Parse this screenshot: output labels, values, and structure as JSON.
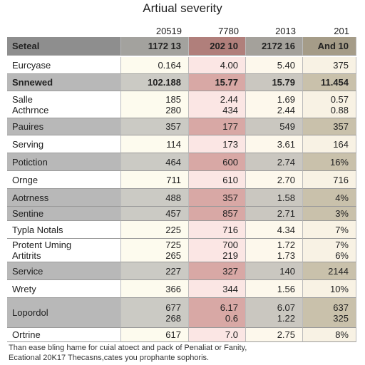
{
  "title": "Artiual severity",
  "column_headers": [
    "20519",
    "7780",
    "2013",
    "201"
  ],
  "header_row": [
    "Seteal",
    "1172 13",
    "202 10",
    "2172 16",
    "And 10"
  ],
  "rows": [
    [
      [
        "Eurcyase"
      ],
      [
        "0.164"
      ],
      [
        "4.00"
      ],
      [
        "5.40"
      ],
      [
        "375"
      ]
    ],
    [
      [
        "Snnewed"
      ],
      [
        "102.188"
      ],
      [
        "15.77"
      ],
      [
        "15.79"
      ],
      [
        "11.454"
      ]
    ],
    [
      [
        "Salle",
        "Acthrnce"
      ],
      [
        "185",
        "280"
      ],
      [
        "2.44",
        "434"
      ],
      [
        "1.69",
        "2.44"
      ],
      [
        "0.57",
        "0.88"
      ]
    ],
    [
      [
        "Pauires"
      ],
      [
        "357"
      ],
      [
        "177"
      ],
      [
        "549"
      ],
      [
        "357"
      ]
    ],
    [
      [
        "Serving"
      ],
      [
        "114"
      ],
      [
        "173"
      ],
      [
        "3.61"
      ],
      [
        "164"
      ]
    ],
    [
      [
        "Potiction"
      ],
      [
        "464"
      ],
      [
        "600"
      ],
      [
        "2.74"
      ],
      [
        "16%"
      ]
    ],
    [
      [
        "Ornge"
      ],
      [
        "711"
      ],
      [
        "610"
      ],
      [
        "2.70"
      ],
      [
        "716"
      ]
    ],
    [
      [
        "Aotrness"
      ],
      [
        "488"
      ],
      [
        "357"
      ],
      [
        "1.58"
      ],
      [
        "4%"
      ]
    ],
    [
      [
        "Sentine"
      ],
      [
        "457"
      ],
      [
        "857"
      ],
      [
        "2.71"
      ],
      [
        "3%"
      ]
    ],
    [
      [
        "Typla Notals"
      ],
      [
        "225"
      ],
      [
        "716"
      ],
      [
        "4.34"
      ],
      [
        "7%"
      ]
    ],
    [
      [
        "Protent Uming",
        "Artitrits"
      ],
      [
        "725",
        "265"
      ],
      [
        "700",
        "219"
      ],
      [
        "1.72",
        "1.73"
      ],
      [
        "7%",
        "6%"
      ]
    ],
    [
      [
        "Service"
      ],
      [
        "227"
      ],
      [
        "327"
      ],
      [
        "140"
      ],
      [
        "2144"
      ]
    ],
    [
      [
        "Wrety"
      ],
      [
        "366"
      ],
      [
        "344"
      ],
      [
        "1.56"
      ],
      [
        "10%"
      ]
    ],
    [
      [
        "Lopordol"
      ],
      [
        "677",
        "268"
      ],
      [
        "6.17",
        "0.6"
      ],
      [
        "6.07",
        "1.22"
      ],
      [
        "637",
        "325"
      ]
    ],
    [
      [
        "Ortrine"
      ],
      [
        "617"
      ],
      [
        "7.0"
      ],
      [
        "2.75"
      ],
      [
        "8%"
      ]
    ]
  ],
  "footer": [
    "Than ease bling hame for cuial atoect and pack of Penaliat or Fanity,",
    "Ecational 20K17 Thecasns,cates you prophante sophoris."
  ]
}
